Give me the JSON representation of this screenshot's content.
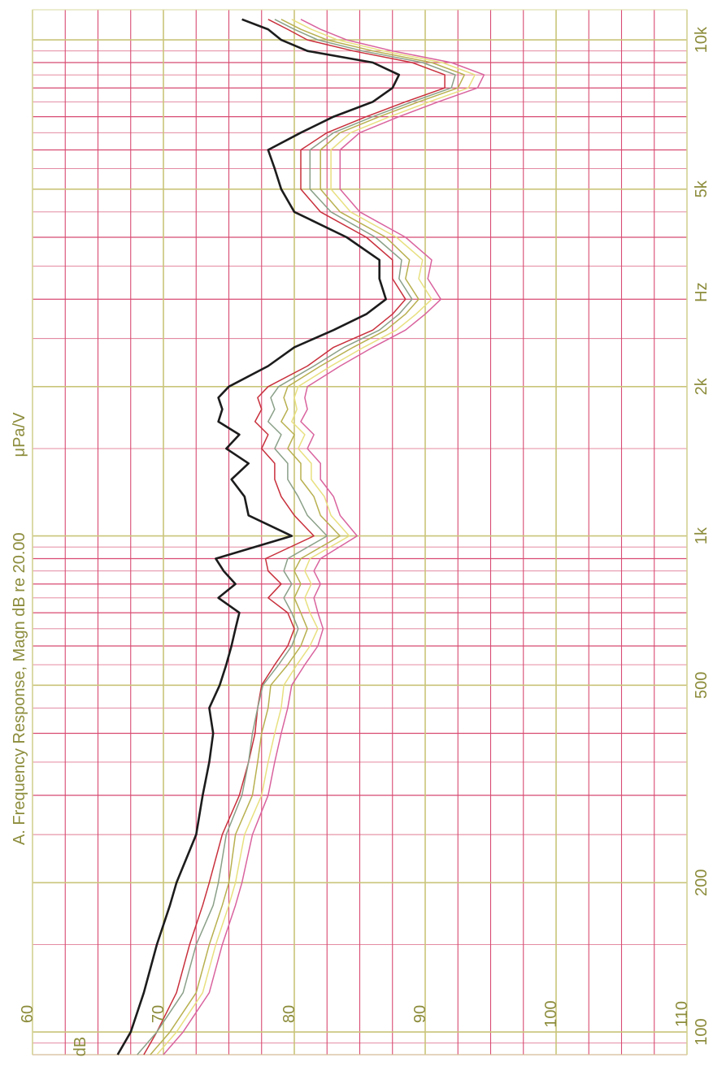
{
  "chart_data": {
    "type": "line",
    "title": "A. Frequency Response, Magn dB re 20.00",
    "unit_label": "μPa/V",
    "xlabel": "Hz",
    "ylabel": "dB",
    "x_scale": "log",
    "xlim": [
      90,
      11500
    ],
    "ylim": [
      60,
      110
    ],
    "grid": true,
    "x_tick_labels": [
      {
        "value": 100,
        "label": "100"
      },
      {
        "value": 200,
        "label": "200"
      },
      {
        "value": 500,
        "label": "500"
      },
      {
        "value": 1000,
        "label": "1k"
      },
      {
        "value": 2000,
        "label": "2k"
      },
      {
        "value": 3100,
        "label": "Hz"
      },
      {
        "value": 5000,
        "label": "5k"
      },
      {
        "value": 10000,
        "label": "10k"
      }
    ],
    "y_tick_labels": [
      {
        "value": 60,
        "label": "60"
      },
      {
        "value": 70,
        "label": "70"
      },
      {
        "value": 80,
        "label": "80"
      },
      {
        "value": 90,
        "label": "90"
      },
      {
        "value": 100,
        "label": "100"
      },
      {
        "value": 110,
        "label": "110"
      }
    ],
    "x": [
      90,
      100,
      120,
      150,
      180,
      200,
      250,
      300,
      350,
      400,
      450,
      500,
      550,
      600,
      650,
      700,
      750,
      800,
      850,
      900,
      1000,
      1100,
      1200,
      1300,
      1400,
      1500,
      1600,
      1700,
      1800,
      1900,
      2000,
      2200,
      2400,
      2600,
      2800,
      3000,
      3300,
      3600,
      4000,
      4500,
      5000,
      5500,
      6000,
      6500,
      7000,
      7500,
      8000,
      8500,
      9000,
      9500,
      10000,
      10500,
      11000
    ],
    "series": [
      {
        "color": "#1c1c1c",
        "values": [
          66.5,
          67.5,
          68.5,
          69.5,
          70.5,
          71,
          72.5,
          73,
          73.5,
          73.8,
          73.5,
          74.3,
          74.8,
          75.2,
          75.5,
          75.8,
          74.2,
          75.5,
          74.6,
          74,
          79.8,
          76.5,
          76.2,
          75.2,
          76.5,
          74.8,
          75.8,
          74.2,
          74.5,
          74.2,
          75,
          78,
          80,
          83,
          85.5,
          87,
          86.5,
          86.5,
          84,
          80,
          79,
          78.5,
          78,
          80.5,
          83,
          86,
          87.5,
          88,
          86,
          81,
          79,
          78,
          76
        ]
      },
      {
        "color": "#c8303c",
        "values": [
          68.5,
          69.5,
          71,
          72,
          73,
          73.5,
          74.5,
          75.8,
          76.5,
          77,
          77.2,
          77.5,
          78.5,
          79.5,
          80,
          79.5,
          78,
          79,
          78,
          77.8,
          81.5,
          80,
          79,
          78.5,
          78.5,
          77.5,
          78,
          77,
          77.5,
          77.2,
          78,
          81,
          83,
          86,
          87.5,
          88.5,
          87.5,
          87.5,
          85.5,
          82,
          80.5,
          80.5,
          80.5,
          82.5,
          85.5,
          88.5,
          91.5,
          91.5,
          89,
          84.5,
          81,
          79.5,
          78
        ]
      },
      {
        "color": "#b8b050",
        "values": [
          69,
          70.5,
          72.5,
          73.5,
          74.5,
          75,
          75.5,
          76.8,
          77.2,
          77.5,
          78,
          78.2,
          79.5,
          80.5,
          81,
          80.5,
          80,
          80.5,
          80,
          80.5,
          83.5,
          82,
          81.5,
          80.5,
          80.5,
          79.5,
          80,
          79,
          79.5,
          79.2,
          79.5,
          82,
          84.5,
          87,
          88.5,
          89.5,
          88.5,
          88.8,
          87,
          83.5,
          82,
          82,
          82,
          83.5,
          86.5,
          89.5,
          92.5,
          93,
          90.5,
          86,
          82.5,
          80.5,
          79
        ]
      },
      {
        "color": "#8aa088",
        "values": [
          68,
          69.5,
          71.5,
          72.5,
          73.8,
          74.2,
          74.8,
          76,
          76.5,
          76.8,
          77.2,
          77.6,
          78.8,
          79.8,
          80.3,
          79.8,
          79.2,
          79.8,
          79.2,
          79.5,
          82.5,
          81,
          80.3,
          79.5,
          79.5,
          78.5,
          79,
          78,
          78.5,
          78.2,
          78.8,
          81.5,
          83.8,
          86.5,
          88,
          89,
          88,
          88.2,
          86.2,
          82.8,
          81.2,
          81.2,
          81.2,
          83,
          86,
          89,
          92,
          92.3,
          89.8,
          85.2,
          81.8,
          80,
          78.5
        ]
      },
      {
        "color": "#d9639e",
        "values": [
          70,
          71.5,
          73.5,
          74.5,
          75.5,
          76,
          76.8,
          78,
          78.5,
          79,
          79.5,
          79.8,
          80.8,
          81.8,
          82.2,
          81.8,
          81.5,
          82,
          81.5,
          82,
          84.8,
          83.5,
          83,
          82,
          82,
          81,
          81.5,
          80.5,
          81,
          80.8,
          81,
          83.5,
          86,
          88.5,
          90,
          91.2,
          90.2,
          90.5,
          88.5,
          85,
          83.5,
          83.5,
          83.5,
          85,
          88,
          91,
          94,
          94.5,
          92,
          87.5,
          84,
          82,
          80.5
        ]
      },
      {
        "color": "#e8e080",
        "values": [
          69.5,
          71,
          73,
          74,
          75,
          75.5,
          76.2,
          77.5,
          78,
          78.5,
          79,
          79.2,
          80.2,
          81.2,
          81.8,
          81.2,
          80.8,
          81.3,
          80.8,
          81.2,
          84.2,
          82.8,
          82.3,
          81.3,
          81.3,
          80.3,
          80.8,
          79.8,
          80.2,
          80,
          80.3,
          82.8,
          85.3,
          87.8,
          89.3,
          90.5,
          89.5,
          89.8,
          87.8,
          84.3,
          82.8,
          82.8,
          82.8,
          84.3,
          87.3,
          90.3,
          93.3,
          93.8,
          91.3,
          86.8,
          83.3,
          81.3,
          79.8
        ]
      }
    ]
  }
}
